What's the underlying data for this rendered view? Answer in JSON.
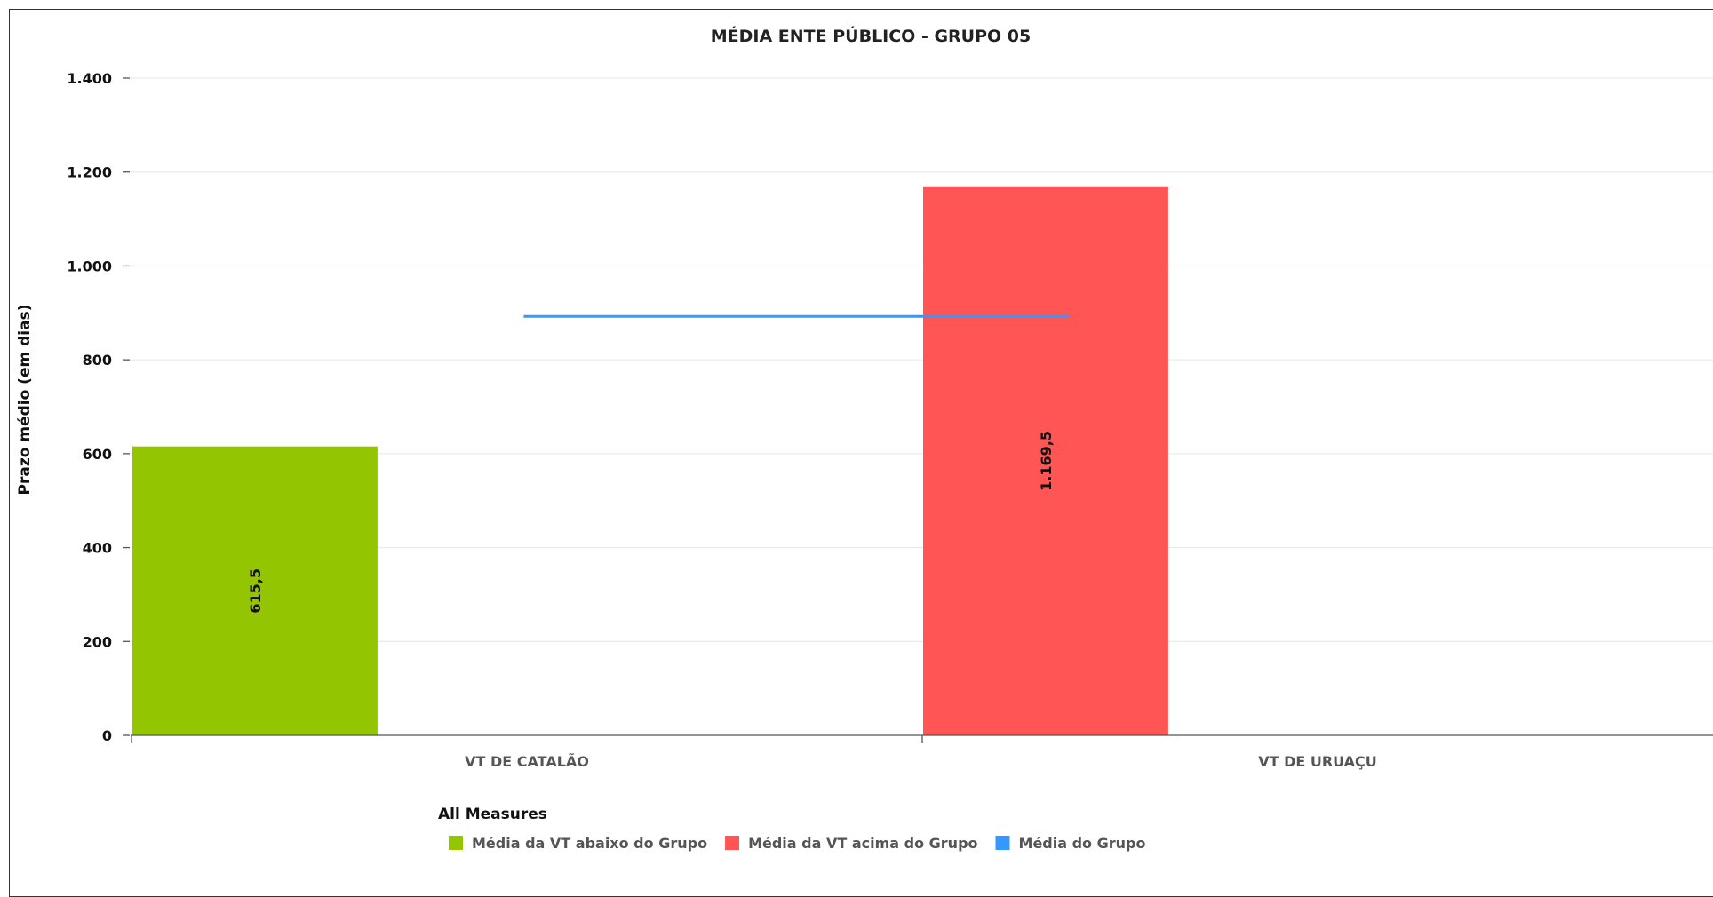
{
  "chart_data": {
    "type": "bar",
    "title": "MÉDIA ENTE PÚBLICO - GRUPO 05",
    "ylabel": "Prazo médio (em dias)",
    "xlabel": "",
    "ylim": [
      0,
      1400
    ],
    "yticks": [
      0,
      200,
      400,
      600,
      800,
      1000,
      1200,
      1400
    ],
    "ytick_labels": [
      "0",
      "200",
      "400",
      "600",
      "800",
      "1.000",
      "1.200",
      "1.400"
    ],
    "grid": true,
    "categories": [
      "VT DE CATALÃO",
      "VT DE URUAÇU"
    ],
    "series": [
      {
        "name": "Média da VT abaixo do Grupo",
        "color": "#93c500",
        "category": "VT DE CATALÃO",
        "value": 615.5,
        "label": "615,5"
      },
      {
        "name": "Média da VT acima do Grupo",
        "color": "#ff5555",
        "category": "VT DE URUAÇU",
        "value": 1169.5,
        "label": "1.169,5"
      },
      {
        "name": "Média do Grupo",
        "type": "line",
        "color": "#3399ff",
        "value": 892.5
      }
    ],
    "legend": {
      "title": "All Measures",
      "position": "bottom-left"
    }
  }
}
